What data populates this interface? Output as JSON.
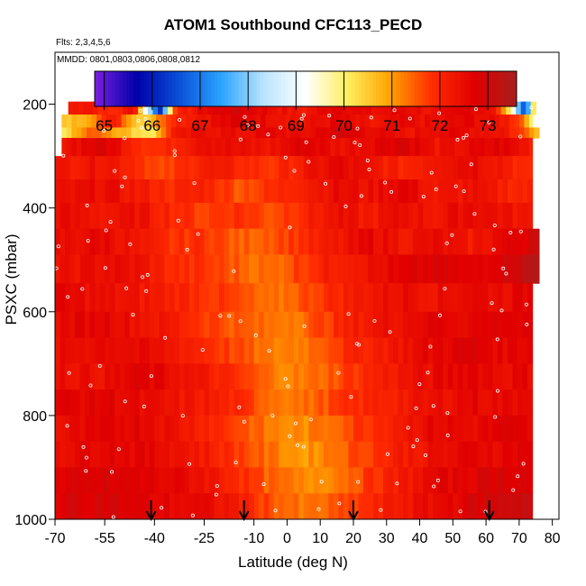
{
  "title": "ATOM1 Southbound CFC113_PECD",
  "flights_label": "Flts: 2,3,4,5,6",
  "dates_label": "MMDD: 0801,0803,0806,0808,0812",
  "colors": {
    "scale": [
      "#7b1fe0",
      "#0000a8",
      "#0a4fd8",
      "#2aa4ff",
      "#b9e4ff",
      "#ffffff",
      "#ffee60",
      "#ffa200",
      "#ff2c00",
      "#e00000",
      "#a81e1e"
    ],
    "marker": "#ffffff",
    "arrow": "#000000"
  },
  "chart_data": {
    "type": "heatmap",
    "title": "ATOM1 Southbound CFC113_PECD",
    "xlabel": "Latitude (deg N)",
    "ylabel": "PSXC (mbar)",
    "xlim": [
      -70,
      82
    ],
    "ylim": [
      1000,
      100
    ],
    "y_reversed": true,
    "xticks": [
      -70,
      -55,
      -40,
      -25,
      -10,
      0,
      10,
      20,
      30,
      40,
      50,
      60,
      70,
      80
    ],
    "yticks": [
      200,
      400,
      600,
      800,
      1000
    ],
    "colorbar": {
      "range": [
        64.8,
        73.6
      ],
      "ticks": [
        65,
        66,
        67,
        68,
        69,
        70,
        71,
        72,
        73
      ]
    },
    "layers": [
      {
        "p": [
          175,
          195
        ],
        "lat": [
          -42,
          34
        ],
        "type": "gradient",
        "start": 67.6,
        "end": 71.6
      },
      {
        "p": [
          195,
          220
        ],
        "points": [
          [
            -66,
            72.2
          ],
          [
            -60,
            72.4
          ],
          [
            -53,
            71.8
          ],
          [
            -46,
            72.5
          ],
          [
            -42,
            68.6
          ],
          [
            -38,
            66.0
          ],
          [
            -34,
            71.8
          ],
          [
            -25,
            72.6
          ],
          [
            -15,
            72.9
          ],
          [
            -5,
            72.5
          ],
          [
            5,
            72.2
          ],
          [
            15,
            72.8
          ],
          [
            25,
            72.4
          ],
          [
            35,
            72.6
          ],
          [
            45,
            72.3
          ],
          [
            55,
            72.7
          ],
          [
            62,
            72.5
          ],
          [
            67,
            70.2
          ],
          [
            72,
            66.2
          ],
          [
            75,
            71.5
          ]
        ]
      },
      {
        "p": [
          220,
          245
        ],
        "points": [
          [
            -68,
            70.4
          ],
          [
            -60,
            71.0
          ],
          [
            -52,
            72.3
          ],
          [
            -46,
            70.6
          ],
          [
            -42,
            70.5
          ],
          [
            -35,
            72.0
          ],
          [
            -25,
            72.4
          ],
          [
            -15,
            72.7
          ],
          [
            -5,
            72.5
          ],
          [
            5,
            72.3
          ],
          [
            15,
            72.6
          ],
          [
            25,
            72.2
          ],
          [
            35,
            72.5
          ],
          [
            45,
            72.4
          ],
          [
            55,
            72.6
          ],
          [
            65,
            72.3
          ],
          [
            70,
            71.8
          ],
          [
            74,
            70.1
          ]
        ]
      },
      {
        "p": [
          245,
          265
        ],
        "points": [
          [
            -68,
            70.2
          ],
          [
            -58,
            71.6
          ],
          [
            -45,
            70.3
          ],
          [
            -40,
            70.2
          ],
          [
            -35,
            72.1
          ],
          [
            -25,
            72.5
          ],
          [
            -15,
            72.4
          ],
          [
            -5,
            72.6
          ],
          [
            5,
            72.4
          ],
          [
            15,
            72.9
          ],
          [
            25,
            72.6
          ],
          [
            35,
            72.3
          ],
          [
            45,
            72.6
          ],
          [
            55,
            72.5
          ],
          [
            65,
            72.4
          ],
          [
            72,
            71.5
          ],
          [
            76,
            70.7
          ]
        ]
      },
      {
        "p": [
          265,
          300
        ],
        "points": [
          [
            -68,
            72.4
          ],
          [
            -55,
            72.8
          ],
          [
            -45,
            72.0
          ],
          [
            -38,
            71.8
          ],
          [
            -25,
            72.6
          ],
          [
            -15,
            72.4
          ],
          [
            -5,
            72.3
          ],
          [
            5,
            72.8
          ],
          [
            15,
            72.4
          ],
          [
            25,
            72.6
          ],
          [
            35,
            72.9
          ],
          [
            45,
            72.3
          ],
          [
            55,
            72.5
          ],
          [
            65,
            72.7
          ],
          [
            74,
            72.2
          ]
        ]
      },
      {
        "p": [
          300,
          345
        ],
        "points": [
          [
            -70,
            72.2
          ],
          [
            -55,
            72.4
          ],
          [
            -45,
            72.0
          ],
          [
            -38,
            71.5
          ],
          [
            -25,
            72.2
          ],
          [
            -15,
            72.0
          ],
          [
            -5,
            71.8
          ],
          [
            5,
            72.2
          ],
          [
            15,
            72.6
          ],
          [
            25,
            72.3
          ],
          [
            35,
            72.0
          ],
          [
            45,
            72.4
          ],
          [
            55,
            72.6
          ],
          [
            65,
            72.3
          ],
          [
            74,
            71.7
          ]
        ]
      },
      {
        "p": [
          345,
          390
        ],
        "points": [
          [
            -70,
            72.3
          ],
          [
            -55,
            72.5
          ],
          [
            -45,
            72.2
          ],
          [
            -35,
            71.9
          ],
          [
            -25,
            72.1
          ],
          [
            -15,
            71.6
          ],
          [
            -5,
            71.8
          ],
          [
            5,
            72.2
          ],
          [
            15,
            72.5
          ],
          [
            25,
            72.4
          ],
          [
            35,
            72.7
          ],
          [
            45,
            72.2
          ],
          [
            55,
            72.4
          ],
          [
            65,
            72.1
          ],
          [
            74,
            72.0
          ]
        ]
      },
      {
        "p": [
          390,
          440
        ],
        "points": [
          [
            -70,
            72.5
          ],
          [
            -55,
            72.3
          ],
          [
            -45,
            72.4
          ],
          [
            -35,
            72.0
          ],
          [
            -25,
            71.7
          ],
          [
            -15,
            71.9
          ],
          [
            -5,
            71.6
          ],
          [
            5,
            72.0
          ],
          [
            15,
            72.4
          ],
          [
            25,
            72.2
          ],
          [
            35,
            72.5
          ],
          [
            45,
            72.3
          ],
          [
            55,
            72.6
          ],
          [
            65,
            72.4
          ],
          [
            74,
            72.2
          ]
        ]
      },
      {
        "p": [
          440,
          490
        ],
        "points": [
          [
            -70,
            72.4
          ],
          [
            -55,
            72.6
          ],
          [
            -45,
            72.2
          ],
          [
            -35,
            71.8
          ],
          [
            -25,
            71.9
          ],
          [
            -15,
            71.4
          ],
          [
            -5,
            71.6
          ],
          [
            5,
            71.9
          ],
          [
            15,
            72.2
          ],
          [
            25,
            72.6
          ],
          [
            35,
            72.3
          ],
          [
            45,
            72.5
          ],
          [
            55,
            72.2
          ],
          [
            65,
            72.6
          ],
          [
            72,
            72.8
          ],
          [
            76,
            73.4
          ]
        ]
      },
      {
        "p": [
          490,
          545
        ],
        "points": [
          [
            -70,
            72.3
          ],
          [
            -55,
            72.5
          ],
          [
            -45,
            72.4
          ],
          [
            -35,
            71.9
          ],
          [
            -25,
            71.8
          ],
          [
            -15,
            71.5
          ],
          [
            -5,
            71.3
          ],
          [
            5,
            71.8
          ],
          [
            15,
            72.2
          ],
          [
            25,
            72.4
          ],
          [
            35,
            72.6
          ],
          [
            45,
            72.8
          ],
          [
            55,
            72.6
          ],
          [
            65,
            72.9
          ],
          [
            72,
            73.2
          ],
          [
            76,
            73.5
          ]
        ]
      },
      {
        "p": [
          545,
          600
        ],
        "points": [
          [
            -70,
            72.6
          ],
          [
            -55,
            72.4
          ],
          [
            -45,
            72.3
          ],
          [
            -35,
            72.1
          ],
          [
            -25,
            71.9
          ],
          [
            -15,
            71.6
          ],
          [
            -5,
            71.2
          ],
          [
            5,
            71.6
          ],
          [
            15,
            72.0
          ],
          [
            25,
            72.3
          ],
          [
            35,
            72.5
          ],
          [
            45,
            72.4
          ],
          [
            55,
            72.6
          ],
          [
            65,
            72.5
          ],
          [
            74,
            72.7
          ]
        ]
      },
      {
        "p": [
          600,
          650
        ],
        "points": [
          [
            -70,
            72.5
          ],
          [
            -55,
            72.7
          ],
          [
            -45,
            72.4
          ],
          [
            -35,
            72.2
          ],
          [
            -25,
            71.8
          ],
          [
            -15,
            71.5
          ],
          [
            -5,
            71.3
          ],
          [
            5,
            71.4
          ],
          [
            15,
            71.9
          ],
          [
            25,
            72.3
          ],
          [
            35,
            72.5
          ],
          [
            45,
            72.7
          ],
          [
            55,
            72.6
          ],
          [
            65,
            72.8
          ],
          [
            74,
            72.6
          ]
        ]
      },
      {
        "p": [
          650,
          700
        ],
        "points": [
          [
            -70,
            72.4
          ],
          [
            -55,
            72.6
          ],
          [
            -45,
            72.5
          ],
          [
            -35,
            72.3
          ],
          [
            -25,
            72.0
          ],
          [
            -15,
            71.6
          ],
          [
            -5,
            71.2
          ],
          [
            5,
            71.3
          ],
          [
            15,
            71.8
          ],
          [
            25,
            72.1
          ],
          [
            35,
            72.4
          ],
          [
            45,
            72.6
          ],
          [
            55,
            72.8
          ],
          [
            65,
            72.6
          ],
          [
            74,
            72.7
          ]
        ]
      },
      {
        "p": [
          700,
          750
        ],
        "points": [
          [
            -70,
            72.5
          ],
          [
            -55,
            72.4
          ],
          [
            -45,
            72.7
          ],
          [
            -35,
            72.5
          ],
          [
            -25,
            72.2
          ],
          [
            -15,
            71.8
          ],
          [
            -5,
            71.3
          ],
          [
            5,
            71.2
          ],
          [
            15,
            71.6
          ],
          [
            25,
            72.0
          ],
          [
            35,
            72.3
          ],
          [
            45,
            72.5
          ],
          [
            55,
            72.7
          ],
          [
            65,
            72.5
          ],
          [
            74,
            72.6
          ]
        ]
      },
      {
        "p": [
          750,
          800
        ],
        "points": [
          [
            -70,
            72.6
          ],
          [
            -55,
            72.7
          ],
          [
            -45,
            72.5
          ],
          [
            -35,
            72.3
          ],
          [
            -25,
            72.2
          ],
          [
            -15,
            71.9
          ],
          [
            -5,
            71.4
          ],
          [
            5,
            71.3
          ],
          [
            15,
            71.7
          ],
          [
            25,
            72.0
          ],
          [
            35,
            72.2
          ],
          [
            45,
            72.4
          ],
          [
            55,
            72.6
          ],
          [
            65,
            72.5
          ],
          [
            74,
            72.7
          ]
        ]
      },
      {
        "p": [
          800,
          850
        ],
        "points": [
          [
            -70,
            72.4
          ],
          [
            -55,
            72.6
          ],
          [
            -45,
            72.7
          ],
          [
            -35,
            72.4
          ],
          [
            -25,
            72.1
          ],
          [
            -15,
            71.7
          ],
          [
            -5,
            71.2
          ],
          [
            5,
            71.1
          ],
          [
            15,
            71.5
          ],
          [
            25,
            71.9
          ],
          [
            35,
            72.3
          ],
          [
            45,
            72.6
          ],
          [
            55,
            72.5
          ],
          [
            65,
            72.7
          ],
          [
            74,
            72.6
          ]
        ]
      },
      {
        "p": [
          850,
          900
        ],
        "points": [
          [
            -70,
            72.5
          ],
          [
            -55,
            72.7
          ],
          [
            -45,
            72.6
          ],
          [
            -35,
            72.5
          ],
          [
            -25,
            72.2
          ],
          [
            -15,
            71.8
          ],
          [
            -5,
            71.3
          ],
          [
            5,
            71.0
          ],
          [
            15,
            71.4
          ],
          [
            25,
            71.8
          ],
          [
            35,
            72.2
          ],
          [
            45,
            72.4
          ],
          [
            55,
            72.6
          ],
          [
            65,
            72.6
          ],
          [
            74,
            72.8
          ]
        ]
      },
      {
        "p": [
          900,
          950
        ],
        "points": [
          [
            -70,
            72.6
          ],
          [
            -55,
            72.8
          ],
          [
            -45,
            72.7
          ],
          [
            -35,
            72.6
          ],
          [
            -25,
            72.4
          ],
          [
            -15,
            72.0
          ],
          [
            -5,
            71.4
          ],
          [
            5,
            71.1
          ],
          [
            15,
            71.3
          ],
          [
            25,
            71.8
          ],
          [
            35,
            72.2
          ],
          [
            45,
            72.6
          ],
          [
            55,
            72.7
          ],
          [
            65,
            72.9
          ],
          [
            74,
            72.8
          ]
        ]
      },
      {
        "p": [
          950,
          1000
        ],
        "points": [
          [
            -70,
            72.8
          ],
          [
            -55,
            72.9
          ],
          [
            -45,
            72.7
          ],
          [
            -35,
            72.6
          ],
          [
            -25,
            72.5
          ],
          [
            -15,
            72.2
          ],
          [
            -5,
            71.6
          ],
          [
            5,
            71.2
          ],
          [
            15,
            71.5
          ],
          [
            25,
            71.9
          ],
          [
            35,
            72.3
          ],
          [
            45,
            72.5
          ],
          [
            55,
            72.8
          ],
          [
            65,
            73.0
          ],
          [
            74,
            73.2
          ]
        ]
      }
    ],
    "arrows_lat": [
      -41,
      -13,
      20,
      61
    ]
  }
}
